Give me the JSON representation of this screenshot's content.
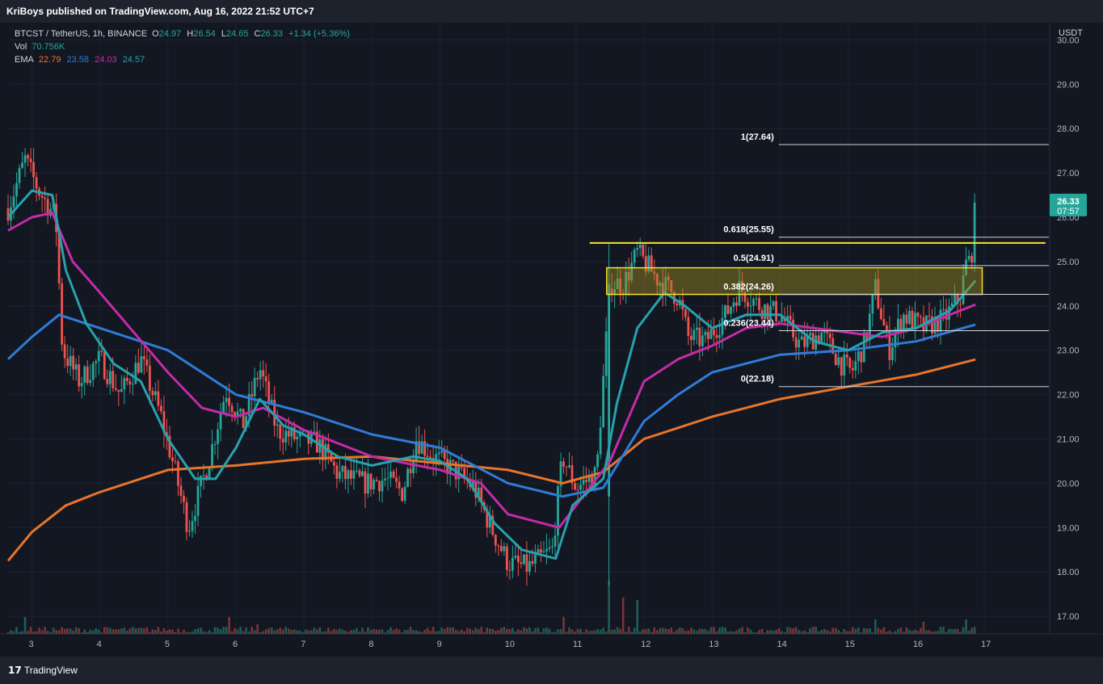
{
  "header": {
    "publisher_line": "KriBoys published on TradingView.com, Aug 16, 2022 21:52 UTC+7"
  },
  "legend": {
    "symbol_line": "BTCST / TetherUS, 1h, BINANCE",
    "o_label": "O",
    "o_value": "24.97",
    "h_label": "H",
    "h_value": "26.54",
    "l_label": "L",
    "l_value": "24.65",
    "c_label": "C",
    "c_value": "26.33",
    "change": "+1.34 (+5.36%)",
    "vol_label": "Vol",
    "vol_value": "70.756K",
    "ema_label": "EMA",
    "ema_values": [
      "22.79",
      "23.58",
      "24.03",
      "24.57"
    ]
  },
  "price_tag": {
    "price": "26.33",
    "countdown": "07:57"
  },
  "footer": {
    "brand": "TradingView"
  },
  "colors": {
    "up": "#26a69a",
    "down": "#ef5350",
    "ema1": "#e8752a",
    "ema2": "#2f7cd9",
    "ema3": "#c42ba8",
    "ema4": "#26a2ad",
    "zone": "#f5e52b",
    "background": "#131722"
  },
  "chart_data": {
    "type": "candlestick",
    "currency": "USDT",
    "ylim": [
      16.6,
      30.3
    ],
    "y_ticks": [
      "30.00",
      "29.00",
      "28.00",
      "27.00",
      "26.00",
      "25.00",
      "24.00",
      "23.00",
      "22.00",
      "21.00",
      "20.00",
      "19.00",
      "18.00",
      "17.00"
    ],
    "xlim": [
      2.65,
      17.95
    ],
    "x_ticks": [
      "3",
      "4",
      "5",
      "6",
      "7",
      "8",
      "9",
      "10",
      "11",
      "12",
      "13",
      "14",
      "15",
      "16",
      "17"
    ],
    "price_points": [
      [
        2.65,
        26.2
      ],
      [
        2.9,
        27.3
      ],
      [
        3.1,
        26.6
      ],
      [
        3.35,
        26.0
      ],
      [
        3.45,
        23.0
      ],
      [
        3.7,
        22.3
      ],
      [
        4.0,
        22.8
      ],
      [
        4.3,
        22.0
      ],
      [
        4.6,
        22.8
      ],
      [
        4.9,
        21.5
      ],
      [
        5.1,
        20.3
      ],
      [
        5.3,
        19.0
      ],
      [
        5.6,
        20.5
      ],
      [
        5.85,
        22.1
      ],
      [
        6.1,
        21.3
      ],
      [
        6.35,
        22.6
      ],
      [
        6.6,
        21.2
      ],
      [
        6.9,
        21.0
      ],
      [
        7.2,
        20.9
      ],
      [
        7.5,
        20.2
      ],
      [
        7.9,
        20.0
      ],
      [
        8.2,
        20.1
      ],
      [
        8.45,
        19.8
      ],
      [
        8.65,
        21.0
      ],
      [
        8.9,
        20.6
      ],
      [
        9.2,
        20.3
      ],
      [
        9.5,
        19.9
      ],
      [
        9.75,
        19.0
      ],
      [
        10.0,
        18.2
      ],
      [
        10.3,
        18.1
      ],
      [
        10.65,
        18.5
      ],
      [
        10.8,
        20.6
      ],
      [
        11.0,
        19.9
      ],
      [
        11.3,
        20.2
      ],
      [
        11.5,
        24.5
      ],
      [
        11.7,
        24.5
      ],
      [
        11.9,
        25.2
      ],
      [
        12.2,
        24.6
      ],
      [
        12.5,
        24.2
      ],
      [
        12.65,
        23.3
      ],
      [
        12.9,
        23.2
      ],
      [
        13.2,
        23.8
      ],
      [
        13.4,
        24.4
      ],
      [
        13.7,
        24.0
      ],
      [
        14.0,
        23.8
      ],
      [
        14.3,
        23.1
      ],
      [
        14.6,
        23.4
      ],
      [
        14.9,
        22.7
      ],
      [
        15.05,
        22.5
      ],
      [
        15.25,
        23.2
      ],
      [
        15.4,
        24.4
      ],
      [
        15.6,
        23.0
      ],
      [
        15.8,
        23.8
      ],
      [
        16.1,
        23.5
      ],
      [
        16.4,
        23.7
      ],
      [
        16.65,
        24.2
      ],
      [
        16.75,
        25.1
      ],
      [
        16.8,
        24.9
      ],
      [
        16.87,
        26.33
      ]
    ],
    "volume_ylim": [
      0,
      2.0
    ],
    "volume_spikes": [
      [
        2.9,
        0.35
      ],
      [
        5.9,
        0.35
      ],
      [
        6.3,
        0.2
      ],
      [
        10.8,
        0.35
      ],
      [
        11.5,
        1.1
      ],
      [
        11.7,
        0.75
      ],
      [
        11.9,
        0.7
      ],
      [
        15.4,
        0.3
      ],
      [
        16.1,
        0.25
      ],
      [
        16.75,
        0.3
      ]
    ],
    "ema_series": [
      {
        "value_label": "22.79",
        "color": "#e8752a",
        "points": [
          [
            2.65,
            18.25
          ],
          [
            3.0,
            18.9
          ],
          [
            3.5,
            19.5
          ],
          [
            4.0,
            19.8
          ],
          [
            5.0,
            20.3
          ],
          [
            6.0,
            20.4
          ],
          [
            7.0,
            20.55
          ],
          [
            8.0,
            20.6
          ],
          [
            9.0,
            20.45
          ],
          [
            10.0,
            20.3
          ],
          [
            10.8,
            20.0
          ],
          [
            11.4,
            20.25
          ],
          [
            12.0,
            21.0
          ],
          [
            12.5,
            21.25
          ],
          [
            13.0,
            21.5
          ],
          [
            14.0,
            21.9
          ],
          [
            15.0,
            22.18
          ],
          [
            16.0,
            22.45
          ],
          [
            16.87,
            22.79
          ]
        ]
      },
      {
        "value_label": "23.58",
        "color": "#2f7cd9",
        "points": [
          [
            2.65,
            22.8
          ],
          [
            3.0,
            23.3
          ],
          [
            3.4,
            23.8
          ],
          [
            4.0,
            23.5
          ],
          [
            5.0,
            23.0
          ],
          [
            6.0,
            22.0
          ],
          [
            7.0,
            21.6
          ],
          [
            8.0,
            21.1
          ],
          [
            9.0,
            20.8
          ],
          [
            10.0,
            20.0
          ],
          [
            10.8,
            19.7
          ],
          [
            11.4,
            19.9
          ],
          [
            12.0,
            21.4
          ],
          [
            12.5,
            22.0
          ],
          [
            13.0,
            22.5
          ],
          [
            14.0,
            22.9
          ],
          [
            15.0,
            23.0
          ],
          [
            16.0,
            23.2
          ],
          [
            16.87,
            23.58
          ]
        ]
      },
      {
        "value_label": "24.03",
        "color": "#c42ba8",
        "points": [
          [
            2.65,
            25.7
          ],
          [
            3.0,
            26.0
          ],
          [
            3.3,
            26.1
          ],
          [
            3.6,
            25.0
          ],
          [
            4.0,
            24.3
          ],
          [
            4.5,
            23.4
          ],
          [
            5.0,
            22.5
          ],
          [
            5.5,
            21.7
          ],
          [
            6.0,
            21.5
          ],
          [
            6.4,
            21.7
          ],
          [
            7.0,
            21.2
          ],
          [
            8.0,
            20.6
          ],
          [
            9.0,
            20.3
          ],
          [
            9.6,
            20.0
          ],
          [
            10.0,
            19.3
          ],
          [
            10.75,
            19.0
          ],
          [
            11.0,
            19.5
          ],
          [
            11.5,
            20.5
          ],
          [
            12.0,
            22.3
          ],
          [
            12.5,
            22.8
          ],
          [
            13.0,
            23.1
          ],
          [
            13.5,
            23.5
          ],
          [
            14.0,
            23.6
          ],
          [
            15.0,
            23.4
          ],
          [
            15.5,
            23.3
          ],
          [
            16.0,
            23.5
          ],
          [
            16.87,
            24.03
          ]
        ]
      },
      {
        "value_label": "24.57",
        "color": "#26a2ad",
        "points": [
          [
            2.65,
            26.0
          ],
          [
            3.0,
            26.6
          ],
          [
            3.3,
            26.5
          ],
          [
            3.5,
            24.8
          ],
          [
            3.8,
            23.6
          ],
          [
            4.2,
            22.7
          ],
          [
            4.6,
            22.3
          ],
          [
            5.0,
            21.0
          ],
          [
            5.4,
            20.1
          ],
          [
            5.7,
            20.1
          ],
          [
            6.0,
            20.8
          ],
          [
            6.35,
            21.9
          ],
          [
            6.7,
            21.3
          ],
          [
            7.0,
            21.1
          ],
          [
            7.5,
            20.6
          ],
          [
            8.0,
            20.4
          ],
          [
            8.6,
            20.6
          ],
          [
            9.0,
            20.5
          ],
          [
            9.4,
            20.1
          ],
          [
            9.8,
            19.1
          ],
          [
            10.2,
            18.5
          ],
          [
            10.7,
            18.3
          ],
          [
            10.95,
            19.5
          ],
          [
            11.4,
            20.1
          ],
          [
            11.6,
            21.8
          ],
          [
            11.9,
            23.5
          ],
          [
            12.3,
            24.3
          ],
          [
            12.6,
            24.0
          ],
          [
            13.0,
            23.5
          ],
          [
            13.5,
            23.8
          ],
          [
            14.0,
            23.8
          ],
          [
            14.5,
            23.2
          ],
          [
            15.0,
            23.0
          ],
          [
            15.5,
            23.4
          ],
          [
            16.0,
            23.5
          ],
          [
            16.5,
            23.9
          ],
          [
            16.87,
            24.57
          ]
        ]
      }
    ],
    "fibonacci": {
      "x_start": 13.98,
      "x_end": 17.95,
      "levels": [
        {
          "label": "1(27.64)",
          "value": 27.64
        },
        {
          "label": "0.618(25.55)",
          "value": 25.55
        },
        {
          "label": "0.5(24.91)",
          "value": 24.91
        },
        {
          "label": "0.382(24.26)",
          "value": 24.26
        },
        {
          "label": "0.236(23.44)",
          "value": 23.44
        },
        {
          "label": "0(22.18)",
          "value": 22.18
        }
      ]
    },
    "resistance_line": {
      "value": 25.42,
      "x_start": 11.2,
      "x_end": 17.9
    },
    "zone": {
      "x_start": 11.45,
      "x_end": 16.97,
      "y_low": 24.26,
      "y_high": 24.86
    }
  }
}
